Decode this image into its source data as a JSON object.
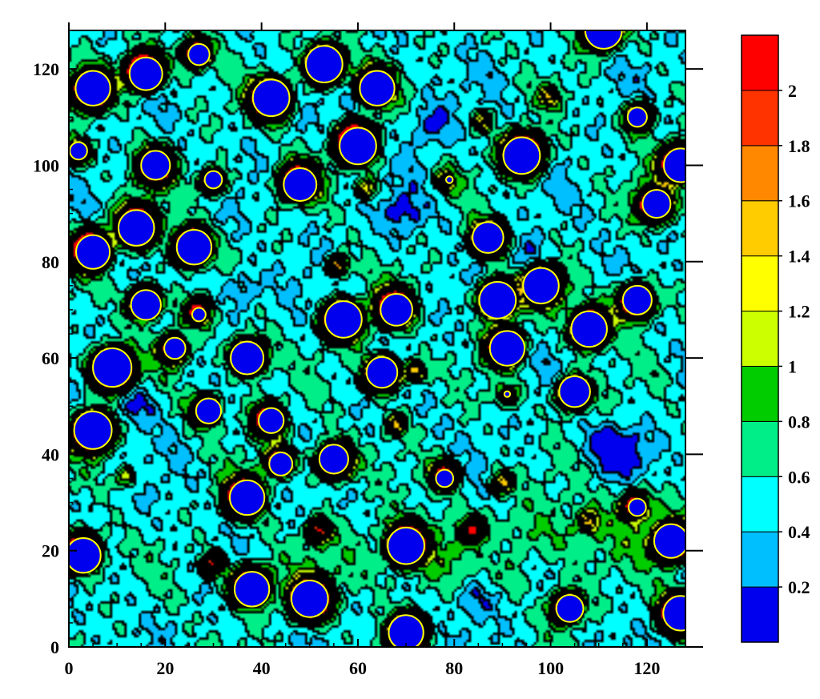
{
  "chart_data": {
    "type": "heatmap",
    "subtype": "filled-contour",
    "title": "",
    "xlabel": "",
    "ylabel": "",
    "xlim": [
      0,
      128
    ],
    "ylim": [
      0,
      128
    ],
    "x_ticks": [
      0,
      20,
      40,
      60,
      80,
      100,
      120
    ],
    "y_ticks": [
      0,
      20,
      40,
      60,
      80,
      100,
      120
    ],
    "grid": false,
    "colorbar": {
      "placement": "right",
      "levels": [
        0,
        0.2,
        0.4,
        0.6,
        0.8,
        1.0,
        1.2,
        1.4,
        1.6,
        1.8,
        2.0,
        2.2
      ],
      "labels": [
        "0.2",
        "0.4",
        "0.6",
        "0.8",
        "1",
        "1.2",
        "1.4",
        "1.6",
        "1.8",
        "2"
      ],
      "label_values": [
        0.2,
        0.4,
        0.6,
        0.8,
        1.0,
        1.2,
        1.4,
        1.6,
        1.8,
        2.0
      ],
      "colors": [
        "#0000ee",
        "#00bfff",
        "#00ffff",
        "#00ee88",
        "#00cc00",
        "#ccff00",
        "#ffff00",
        "#ffcc00",
        "#ff8800",
        "#ff3300",
        "#ff0000"
      ]
    },
    "background_level": 0.5,
    "particles": [
      {
        "x": 5,
        "y": 116,
        "r": 3.6
      },
      {
        "x": 16,
        "y": 119,
        "r": 3.4
      },
      {
        "x": 27,
        "y": 123,
        "r": 2.2
      },
      {
        "x": 42,
        "y": 114,
        "r": 3.8
      },
      {
        "x": 53,
        "y": 121,
        "r": 3.8
      },
      {
        "x": 64,
        "y": 116,
        "r": 3.6
      },
      {
        "x": 111,
        "y": 128,
        "r": 3.8
      },
      {
        "x": 2,
        "y": 103,
        "r": 1.8
      },
      {
        "x": 18,
        "y": 100,
        "r": 3.0
      },
      {
        "x": 30,
        "y": 97,
        "r": 1.8
      },
      {
        "x": 48,
        "y": 96,
        "r": 3.4
      },
      {
        "x": 60,
        "y": 104,
        "r": 3.8
      },
      {
        "x": 94,
        "y": 102,
        "r": 3.8
      },
      {
        "x": 118,
        "y": 110,
        "r": 2.0
      },
      {
        "x": 127,
        "y": 100,
        "r": 3.5
      },
      {
        "x": 122,
        "y": 92,
        "r": 2.9
      },
      {
        "x": 14,
        "y": 87,
        "r": 3.7
      },
      {
        "x": 5,
        "y": 82,
        "r": 3.5
      },
      {
        "x": 26,
        "y": 83,
        "r": 3.6
      },
      {
        "x": 87,
        "y": 85,
        "r": 3.2
      },
      {
        "x": 16,
        "y": 71,
        "r": 3.1
      },
      {
        "x": 27,
        "y": 69,
        "r": 1.4
      },
      {
        "x": 57,
        "y": 68,
        "r": 3.8
      },
      {
        "x": 68,
        "y": 70,
        "r": 3.3
      },
      {
        "x": 89,
        "y": 72,
        "r": 3.8
      },
      {
        "x": 98,
        "y": 75,
        "r": 3.7
      },
      {
        "x": 108,
        "y": 66,
        "r": 3.7
      },
      {
        "x": 118,
        "y": 72,
        "r": 3.0
      },
      {
        "x": 22,
        "y": 62,
        "r": 2.2
      },
      {
        "x": 37,
        "y": 60,
        "r": 3.4
      },
      {
        "x": 9,
        "y": 58,
        "r": 4.0
      },
      {
        "x": 65,
        "y": 57,
        "r": 3.2
      },
      {
        "x": 91,
        "y": 62,
        "r": 3.6
      },
      {
        "x": 105,
        "y": 53,
        "r": 3.2
      },
      {
        "x": 29,
        "y": 49,
        "r": 2.6
      },
      {
        "x": 42,
        "y": 47,
        "r": 2.6
      },
      {
        "x": 5,
        "y": 45,
        "r": 3.9
      },
      {
        "x": 44,
        "y": 38,
        "r": 2.4
      },
      {
        "x": 55,
        "y": 39,
        "r": 3.0
      },
      {
        "x": 78,
        "y": 35,
        "r": 1.8
      },
      {
        "x": 37,
        "y": 31,
        "r": 3.6
      },
      {
        "x": 118,
        "y": 29,
        "r": 1.8
      },
      {
        "x": 3,
        "y": 19,
        "r": 3.6
      },
      {
        "x": 70,
        "y": 21,
        "r": 3.8
      },
      {
        "x": 125,
        "y": 22,
        "r": 3.5
      },
      {
        "x": 38,
        "y": 12,
        "r": 3.6
      },
      {
        "x": 50,
        "y": 10,
        "r": 3.8
      },
      {
        "x": 104,
        "y": 8,
        "r": 2.8
      },
      {
        "x": 127,
        "y": 7,
        "r": 3.6
      },
      {
        "x": 70,
        "y": 3,
        "r": 3.6
      },
      {
        "x": 91,
        "y": 52.5,
        "r": 0.6
      },
      {
        "x": 79,
        "y": 97,
        "r": 0.7
      }
    ],
    "hotspots": [
      {
        "x": 56,
        "y": 79,
        "amp": 1.3
      },
      {
        "x": 72,
        "y": 57,
        "amp": 1.2
      },
      {
        "x": 108,
        "y": 26,
        "amp": 0.9
      },
      {
        "x": 84,
        "y": 24,
        "amp": 1.5
      },
      {
        "x": 30,
        "y": 17,
        "amp": 1.6
      },
      {
        "x": 52,
        "y": 24,
        "amp": 1.6
      },
      {
        "x": 90,
        "y": 34,
        "amp": 1.1
      },
      {
        "x": 68,
        "y": 46,
        "amp": 0.9
      },
      {
        "x": 100,
        "y": 114,
        "amp": 0.8
      },
      {
        "x": 86,
        "y": 109,
        "amp": 0.8
      },
      {
        "x": 12,
        "y": 35,
        "amp": 0.8
      },
      {
        "x": 62,
        "y": 95,
        "amp": 0.9
      }
    ],
    "lowspots": [
      {
        "x": 84,
        "y": 10
      },
      {
        "x": 60,
        "y": 114
      },
      {
        "x": 75,
        "y": 108
      },
      {
        "x": 112,
        "y": 42
      },
      {
        "x": 88,
        "y": 20
      },
      {
        "x": 36,
        "y": 74
      },
      {
        "x": 96,
        "y": 80
      },
      {
        "x": 14,
        "y": 50
      },
      {
        "x": 116,
        "y": 40
      },
      {
        "x": 70,
        "y": 90
      }
    ]
  }
}
